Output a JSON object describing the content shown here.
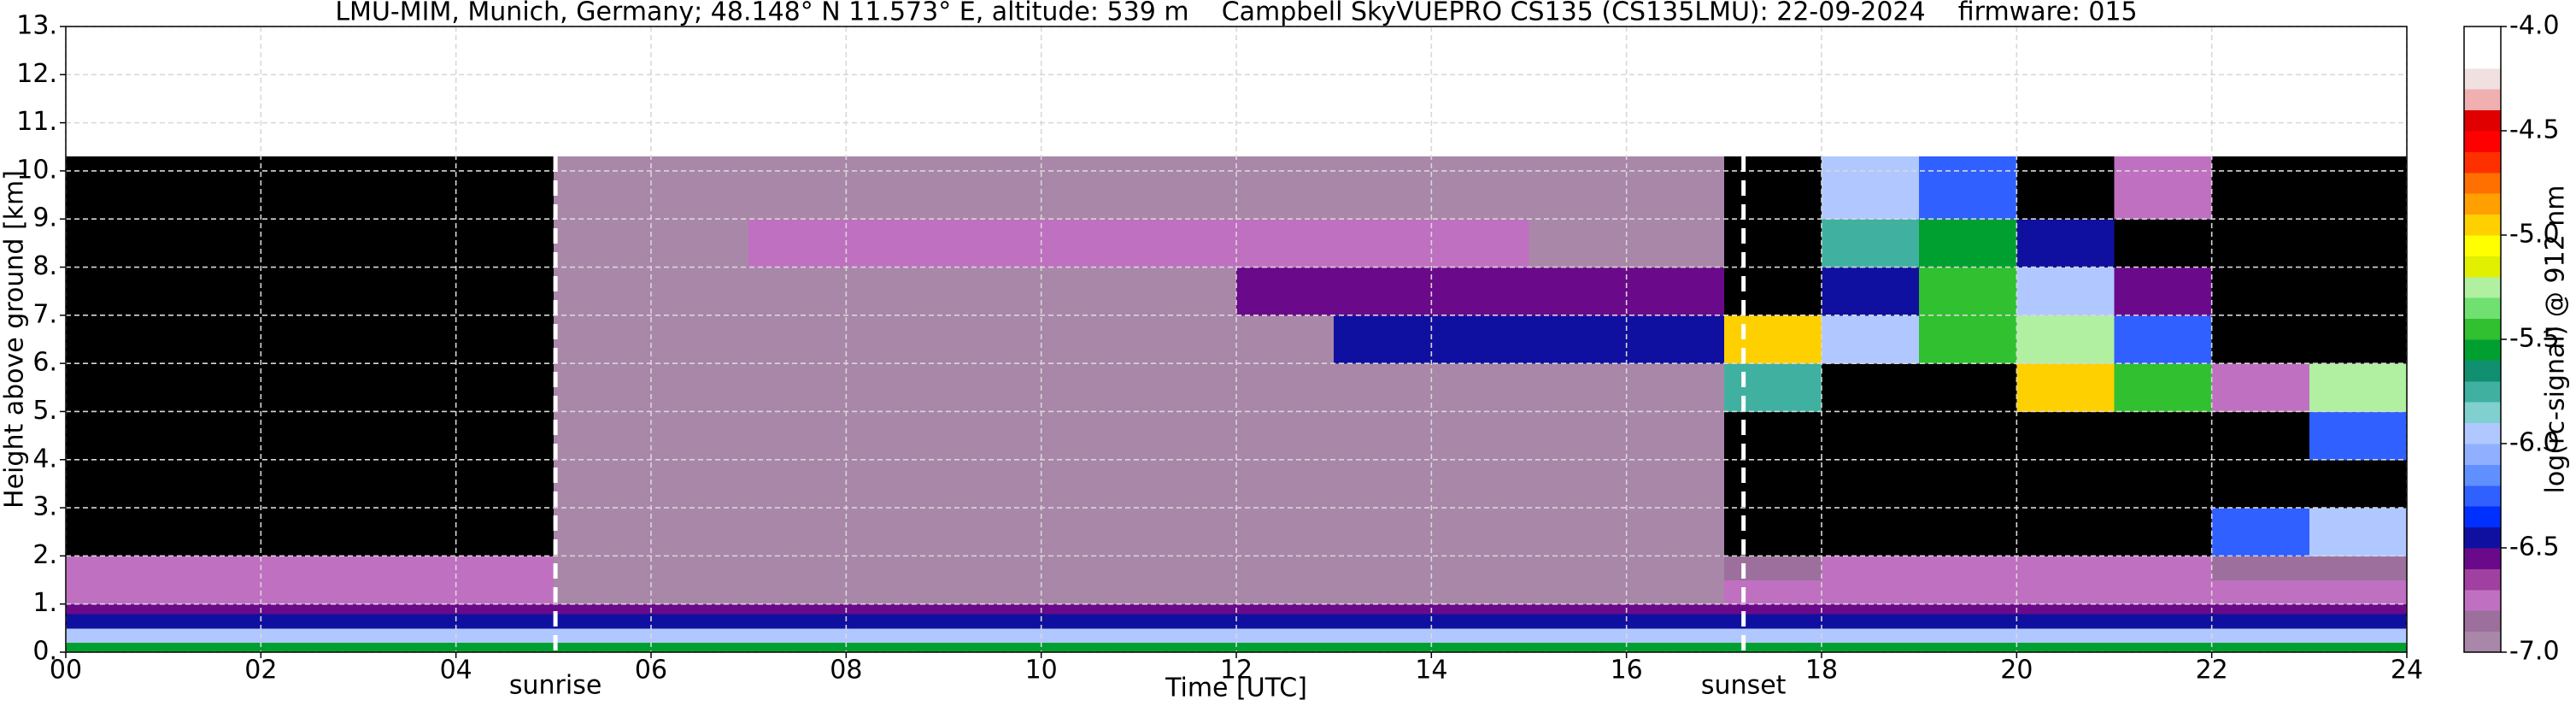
{
  "chart_data": {
    "type": "heatmap",
    "title": "LMU-MIM, Munich, Germany; 48.148° N 11.573° E, altitude: 539 m    Campbell SkyVUEPRO CS135 (CS135LMU): 22-09-2024    firmware: 015",
    "xlabel": "Time [UTC]",
    "ylabel": "Height above ground [km]",
    "colorbar_label": "log(rc-signal) @ 912 nm",
    "xlim": [
      0,
      24
    ],
    "xticks": [
      {
        "value": 0,
        "label": "00"
      },
      {
        "value": 2,
        "label": "02"
      },
      {
        "value": 4,
        "label": "04"
      },
      {
        "value": 6,
        "label": "06"
      },
      {
        "value": 8,
        "label": "08"
      },
      {
        "value": 10,
        "label": "10"
      },
      {
        "value": 12,
        "label": "12"
      },
      {
        "value": 14,
        "label": "14"
      },
      {
        "value": 16,
        "label": "16"
      },
      {
        "value": 18,
        "label": "18"
      },
      {
        "value": 20,
        "label": "20"
      },
      {
        "value": 22,
        "label": "22"
      },
      {
        "value": 24,
        "label": "24"
      }
    ],
    "ylim": [
      0,
      13
    ],
    "yticks": [
      {
        "value": 0,
        "label": "0."
      },
      {
        "value": 1,
        "label": "1."
      },
      {
        "value": 2,
        "label": "2."
      },
      {
        "value": 3,
        "label": "3."
      },
      {
        "value": 4,
        "label": "4."
      },
      {
        "value": 5,
        "label": "5."
      },
      {
        "value": 6,
        "label": "6."
      },
      {
        "value": 7,
        "label": "7."
      },
      {
        "value": 8,
        "label": "8."
      },
      {
        "value": 9,
        "label": "9."
      },
      {
        "value": 10,
        "label": "10."
      },
      {
        "value": 11,
        "label": "11."
      },
      {
        "value": 12,
        "label": "12."
      },
      {
        "value": 13,
        "label": "13."
      }
    ],
    "clim": [
      -7,
      -4
    ],
    "cticks": [
      {
        "value": -4,
        "label": "-4.0"
      },
      {
        "value": -4.5,
        "label": "-4.5"
      },
      {
        "value": -5,
        "label": "-5.0"
      },
      {
        "value": -5.5,
        "label": "-5.5"
      },
      {
        "value": -6,
        "label": "-6.0"
      },
      {
        "value": -6.5,
        "label": "-6.5"
      },
      {
        "value": -7,
        "label": "-7.0"
      }
    ],
    "colors": [
      "#a987a9",
      "#9c6f9c",
      "#c070c0",
      "#a040a0",
      "#6a0a8a",
      "#1010a0",
      "#0030ff",
      "#3060ff",
      "#6090ff",
      "#90b0ff",
      "#b0c8ff",
      "#80d0d0",
      "#40b0a0",
      "#109070",
      "#00a030",
      "#30c030",
      "#70e070",
      "#b0f0a0",
      "#e0f000",
      "#ffff00",
      "#ffd000",
      "#ffa000",
      "#ff7000",
      "#ff3000",
      "#ff0000",
      "#e00000",
      "#f0b0b0",
      "#f0e0e0",
      "#ffffff",
      "#ffffff"
    ],
    "under_color": "#000000",
    "grid": true,
    "annotations": [
      {
        "text": "sunrise",
        "x": 5.02
      },
      {
        "text": "sunset",
        "x": 17.2
      }
    ],
    "x_edges": [
      0,
      1,
      2,
      3,
      4,
      5,
      6,
      7,
      8,
      9,
      10,
      11,
      12,
      13,
      14,
      15,
      16,
      17,
      18,
      19,
      20,
      21,
      22,
      23,
      24
    ],
    "y_edges": [
      0,
      0.2,
      0.5,
      0.8,
      1,
      1.5,
      2,
      3,
      4,
      5,
      6,
      7,
      8,
      9,
      10.3
    ],
    "z": [
      [
        -5.6,
        -5.6,
        -5.6,
        -5.6,
        -5.6,
        -5.6,
        -5.6,
        -5.6,
        -5.6,
        -5.6,
        -5.6,
        -5.6,
        -5.6,
        -5.6,
        -5.6,
        -5.6,
        -5.6,
        -5.6,
        -5.6,
        -5.6,
        -5.6,
        -5.6,
        -5.6,
        -5.6
      ],
      [
        -6.0,
        -6.0,
        -6.0,
        -6.0,
        -6.0,
        -6.0,
        -6.0,
        -6.0,
        -6.0,
        -6.0,
        -6.0,
        -6.0,
        -6.0,
        -6.0,
        -6.0,
        -6.0,
        -6.0,
        -6.0,
        -6.0,
        -6.0,
        -6.0,
        -6.0,
        -6.0,
        -6.0
      ],
      [
        -6.4,
        -6.4,
        -6.4,
        -6.4,
        -6.4,
        -6.4,
        -6.4,
        -6.4,
        -6.4,
        -6.4,
        -6.4,
        -6.4,
        -6.4,
        -6.4,
        -6.4,
        -6.4,
        -6.4,
        -6.4,
        -6.4,
        -6.4,
        -6.4,
        -6.4,
        -6.4,
        -6.4
      ],
      [
        -6.6,
        -6.6,
        -6.6,
        -6.6,
        -6.6,
        -6.6,
        -6.6,
        -6.6,
        -6.6,
        -6.6,
        -6.6,
        -6.6,
        -6.6,
        -6.6,
        -6.6,
        -6.6,
        -6.6,
        -6.6,
        -6.6,
        -6.6,
        -6.6,
        -6.6,
        -6.6,
        -6.6
      ],
      [
        -6.75,
        -6.75,
        -6.75,
        -6.75,
        -6.75,
        -6.9,
        -6.9,
        -6.9,
        -6.9,
        -6.9,
        -6.9,
        -6.9,
        -6.9,
        -6.9,
        -6.9,
        -6.9,
        -6.9,
        -6.75,
        -6.75,
        -6.75,
        -6.75,
        -6.75,
        -6.75,
        -6.75
      ],
      [
        -6.8,
        -6.8,
        -6.8,
        -6.8,
        -6.8,
        -6.95,
        -6.95,
        -6.95,
        -6.95,
        -6.95,
        -6.95,
        -6.95,
        -6.95,
        -6.95,
        -6.95,
        -6.95,
        -6.95,
        -6.85,
        -6.8,
        -6.8,
        -6.8,
        -6.8,
        -6.85,
        -6.85
      ],
      [
        -7.2,
        -7.2,
        -7.2,
        -7.2,
        -7.2,
        -6.95,
        -6.95,
        -6.95,
        -6.95,
        -6.95,
        -6.95,
        -6.95,
        -6.95,
        -6.95,
        -6.95,
        -6.95,
        -6.95,
        -7.2,
        -7.2,
        -7.2,
        -7.2,
        -7.2,
        -6.2,
        -6.0
      ],
      [
        -7.2,
        -7.2,
        -7.2,
        -7.2,
        -7.2,
        -6.95,
        -6.95,
        -6.95,
        -6.95,
        -6.95,
        -6.95,
        -6.95,
        -6.95,
        -6.95,
        -6.95,
        -6.95,
        -6.95,
        -7.2,
        -7.2,
        -7.2,
        -7.2,
        -7.2,
        -7.2,
        -7.2
      ],
      [
        -7.2,
        -7.2,
        -7.2,
        -7.2,
        -7.2,
        -6.95,
        -6.95,
        -6.95,
        -6.95,
        -6.95,
        -6.95,
        -6.95,
        -6.95,
        -6.95,
        -6.95,
        -6.95,
        -6.95,
        -7.2,
        -7.2,
        -7.2,
        -7.2,
        -7.2,
        -7.2,
        -6.3
      ],
      [
        -7.2,
        -7.2,
        -7.2,
        -7.2,
        -7.2,
        -6.95,
        -6.95,
        -6.95,
        -6.95,
        -6.95,
        -6.95,
        -6.95,
        -6.95,
        -6.95,
        -6.95,
        -6.95,
        -6.95,
        -5.8,
        -7.2,
        -7.2,
        -5.0,
        -5.4,
        -6.8,
        -5.2
      ],
      [
        -7.2,
        -7.2,
        -7.2,
        -7.2,
        -7.2,
        -6.9,
        -6.9,
        -6.9,
        -6.9,
        -6.9,
        -6.9,
        -6.9,
        -6.9,
        -6.5,
        -6.5,
        -6.5,
        -6.5,
        -4.9,
        -6.0,
        -5.4,
        -5.2,
        -6.3,
        -7.2,
        -7.2
      ],
      [
        -7.2,
        -7.2,
        -7.2,
        -7.2,
        -7.2,
        -6.9,
        -6.9,
        -6.9,
        -6.9,
        -6.9,
        -6.9,
        -6.9,
        -6.6,
        -6.6,
        -6.6,
        -6.6,
        -6.6,
        -7.2,
        -6.5,
        -5.5,
        -6.0,
        -6.6,
        -7.2,
        -7.2
      ],
      [
        -7.2,
        -7.2,
        -7.2,
        -7.2,
        -7.2,
        -6.9,
        -6.9,
        -6.7,
        -6.7,
        -6.7,
        -6.7,
        -6.7,
        -6.7,
        -6.7,
        -6.7,
        -6.9,
        -6.9,
        -7.2,
        -5.8,
        -5.6,
        -6.5,
        -7.2,
        -7.2,
        -7.2
      ],
      [
        -7.2,
        -7.2,
        -7.2,
        -7.2,
        -7.2,
        -6.95,
        -6.95,
        -6.95,
        -6.95,
        -6.95,
        -6.95,
        -6.95,
        -6.95,
        -6.95,
        -6.95,
        -6.95,
        -6.95,
        -7.2,
        -5.9,
        -6.3,
        -7.2,
        -6.7,
        -7.2,
        -7.2
      ]
    ]
  }
}
